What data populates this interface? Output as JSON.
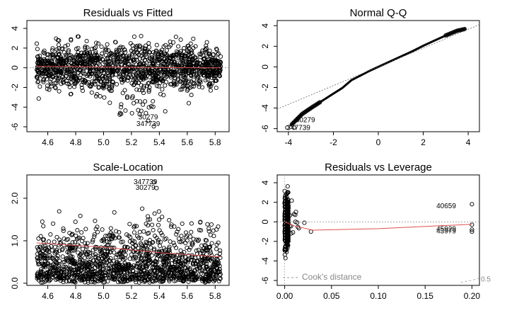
{
  "chart_data": [
    {
      "type": "scatter",
      "title": "Residuals vs Fitted",
      "xlabel": "",
      "ylabel": "",
      "xlim": [
        4.45,
        5.9
      ],
      "ylim": [
        -6.5,
        4.8
      ],
      "x_ticks": [
        "4.6",
        "4.8",
        "5.0",
        "5.2",
        "5.4",
        "5.6",
        "5.8"
      ],
      "y_ticks": [
        "4",
        "2",
        "0",
        "-2",
        "-4",
        "-6"
      ],
      "point_cloud": {
        "x_range": [
          4.52,
          5.84
        ],
        "y_range": [
          -3.6,
          3.3
        ],
        "center_y": 0.0
      },
      "smooth_line": {
        "x": [
          4.52,
          5.0,
          5.4,
          5.84
        ],
        "y": [
          0.15,
          0.08,
          0.02,
          0.0
        ]
      },
      "reference_line_y": 0,
      "annotations": [
        {
          "text": "30279",
          "x": 5.32,
          "y": -5.05
        },
        {
          "text": "347739",
          "x": 5.32,
          "y": -5.75
        }
      ]
    },
    {
      "type": "scatter",
      "title": "Normal Q-Q",
      "xlabel": "",
      "ylabel": "",
      "xlim": [
        -4.5,
        4.5
      ],
      "ylim": [
        -6.3,
        4.5
      ],
      "x_ticks": [
        "-4",
        "-2",
        "0",
        "2",
        "4"
      ],
      "y_ticks": [
        "4",
        "2",
        "0",
        "-2",
        "-4",
        "-6"
      ],
      "qq_curve": {
        "x": [
          -3.9,
          -3.4,
          -3.0,
          -2.5,
          -2.0,
          -1.6,
          -1.2,
          -0.8,
          -0.4,
          0.0,
          0.5,
          1.0,
          1.5,
          2.0,
          2.5,
          3.0,
          3.5,
          3.9
        ],
        "y": [
          -5.7,
          -4.6,
          -4.0,
          -3.3,
          -2.6,
          -2.05,
          -1.3,
          -0.85,
          -0.4,
          0.0,
          0.5,
          1.0,
          1.5,
          2.05,
          2.55,
          3.05,
          3.5,
          3.7
        ]
      },
      "reference_line": {
        "x": [
          -4.5,
          4.5
        ],
        "y": [
          -4.1,
          4.1
        ]
      },
      "annotations": [
        {
          "text": "30279",
          "x": -3.25,
          "y": -5.2
        },
        {
          "text": "347739",
          "x": -3.55,
          "y": -5.95
        }
      ]
    },
    {
      "type": "scatter",
      "title": "Scale-Location",
      "xlabel": "",
      "ylabel": "",
      "xlim": [
        4.45,
        5.9
      ],
      "ylim": [
        -0.05,
        2.55
      ],
      "x_ticks": [
        "4.6",
        "4.8",
        "5.0",
        "5.2",
        "5.4",
        "5.6",
        "5.8"
      ],
      "y_ticks": [
        "0.0",
        "1.0",
        "2.0"
      ],
      "point_cloud": {
        "x_range": [
          4.52,
          5.84
        ],
        "y_range": [
          0.02,
          2.05
        ]
      },
      "smooth_line": {
        "x": [
          4.52,
          5.0,
          5.4,
          5.84
        ],
        "y": [
          0.95,
          0.85,
          0.72,
          0.62
        ]
      },
      "annotations": [
        {
          "text": "347739",
          "x": 5.3,
          "y": 2.38
        },
        {
          "text": "30279",
          "x": 5.3,
          "y": 2.24
        }
      ]
    },
    {
      "type": "scatter",
      "title": "Residuals vs Leverage",
      "xlabel": "",
      "ylabel": "",
      "xlim": [
        -0.008,
        0.208
      ],
      "ylim": [
        -6.5,
        4.8
      ],
      "x_ticks": [
        "0.00",
        "0.05",
        "0.10",
        "0.15",
        "0.20"
      ],
      "y_ticks": [
        "4",
        "2",
        "0",
        "-2",
        "-4",
        "-6"
      ],
      "point_cloud": {
        "x_range": [
          0.0,
          0.004
        ],
        "y_range": [
          -6.0,
          3.8
        ]
      },
      "outlier_points": [
        {
          "x": 0.2,
          "y": 1.8
        },
        {
          "x": 0.2,
          "y": -0.3
        },
        {
          "x": 0.2,
          "y": -0.8
        },
        {
          "x": 0.2,
          "y": -1.0
        },
        {
          "x": 0.028,
          "y": -1.0
        },
        {
          "x": 0.021,
          "y": -0.1
        }
      ],
      "smooth_line": {
        "x": [
          0.0,
          0.01,
          0.03,
          0.1,
          0.2
        ],
        "y": [
          0.0,
          -0.4,
          -0.85,
          -0.7,
          -0.25
        ]
      },
      "reference_line_y": 0,
      "cooks_distance_line": {
        "level": 0.5
      },
      "annotations": [
        {
          "text": "40659",
          "x": 0.183,
          "y": 1.6
        },
        {
          "text": "45929",
          "x": 0.183,
          "y": -0.75
        },
        {
          "text": "43979",
          "x": 0.183,
          "y": -1.0
        }
      ],
      "legend": {
        "text": "Cook's distance",
        "placement": "bottom-left"
      },
      "contour_label": "0.5"
    }
  ]
}
